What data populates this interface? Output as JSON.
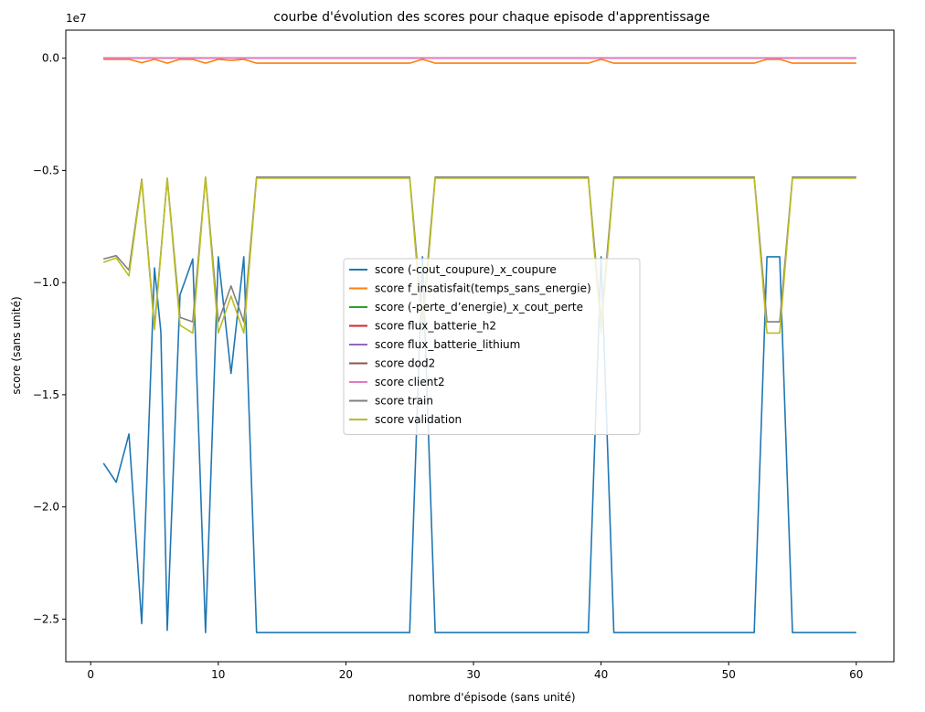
{
  "chart_data": {
    "type": "line",
    "title": "courbe d'évolution des scores pour chaque episode d'apprentissage",
    "xlabel": "nombre d'épisode (sans unité)",
    "ylabel": "score (sans unité)",
    "y_scale_label": "1e7",
    "xlim": [
      -1.95,
      62.95
    ],
    "ylim": [
      -26900000,
      1250000
    ],
    "xticks": [
      0,
      10,
      20,
      30,
      40,
      50,
      60
    ],
    "yticks": [
      0.0,
      -0.5,
      -1.0,
      -1.5,
      -2.0,
      -2.5
    ],
    "ytick_labels": [
      "0.0",
      "−0.5",
      "−1.0",
      "−1.5",
      "−2.0",
      "−2.5"
    ],
    "ytick_multiplier": 10000000,
    "grid": false,
    "legend_position": "center",
    "series": [
      {
        "name": "score (-cout_coupure)_x_coupure",
        "color": "#1f77b4",
        "points": [
          [
            1,
            -18050000
          ],
          [
            2,
            -18900000
          ],
          [
            3,
            -16750000
          ],
          [
            4,
            -25200000
          ],
          [
            5,
            -9350000
          ],
          [
            5.5,
            -12200000
          ],
          [
            6,
            -25500000
          ],
          [
            7,
            -10550000
          ],
          [
            8,
            -8950000
          ],
          [
            9,
            -25600000
          ],
          [
            10,
            -8850000
          ],
          [
            11,
            -14050000
          ],
          [
            12,
            -8850000
          ],
          [
            13,
            -25600000
          ],
          [
            25,
            -25600000
          ],
          [
            26,
            -8850000
          ],
          [
            27,
            -25600000
          ],
          [
            39,
            -25600000
          ],
          [
            40,
            -8850000
          ],
          [
            41,
            -25600000
          ],
          [
            52,
            -25600000
          ],
          [
            53,
            -8850000
          ],
          [
            54,
            -8850000
          ],
          [
            55,
            -25600000
          ],
          [
            60,
            -25600000
          ]
        ]
      },
      {
        "name": "score f_insatisfait(temps_sans_energie)",
        "color": "#ff7f0e",
        "points": [
          [
            1,
            -50000
          ],
          [
            2,
            -50000
          ],
          [
            3,
            -50000
          ],
          [
            4,
            -200000
          ],
          [
            5,
            -50000
          ],
          [
            6,
            -220000
          ],
          [
            7,
            -50000
          ],
          [
            8,
            -50000
          ],
          [
            9,
            -220000
          ],
          [
            10,
            -50000
          ],
          [
            11,
            -100000
          ],
          [
            12,
            -50000
          ],
          [
            13,
            -220000
          ],
          [
            25,
            -220000
          ],
          [
            26,
            -50000
          ],
          [
            27,
            -220000
          ],
          [
            39,
            -220000
          ],
          [
            40,
            -50000
          ],
          [
            41,
            -220000
          ],
          [
            52,
            -220000
          ],
          [
            53,
            -50000
          ],
          [
            54,
            -50000
          ],
          [
            55,
            -220000
          ],
          [
            60,
            -220000
          ]
        ]
      },
      {
        "name": "score (-perte_d’energie)_x_cout_perte",
        "color": "#2ca02c",
        "points": [
          [
            1,
            0
          ],
          [
            60,
            0
          ]
        ]
      },
      {
        "name": "score flux_batterie_h2",
        "color": "#d62728",
        "points": [
          [
            1,
            0
          ],
          [
            60,
            0
          ]
        ]
      },
      {
        "name": "score flux_batterie_lithium",
        "color": "#9467bd",
        "points": [
          [
            1,
            0
          ],
          [
            60,
            0
          ]
        ]
      },
      {
        "name": "score dod2",
        "color": "#8c564b",
        "points": [
          [
            1,
            0
          ],
          [
            60,
            0
          ]
        ]
      },
      {
        "name": "score client2",
        "color": "#e377c2",
        "points": [
          [
            1,
            0
          ],
          [
            60,
            0
          ]
        ]
      },
      {
        "name": "score train",
        "color": "#7f7f7f",
        "points": [
          [
            1,
            -8950000
          ],
          [
            2,
            -8800000
          ],
          [
            3,
            -9450000
          ],
          [
            4,
            -5400000
          ],
          [
            5,
            -11950000
          ],
          [
            6,
            -5350000
          ],
          [
            7,
            -11550000
          ],
          [
            8,
            -11750000
          ],
          [
            9,
            -5300000
          ],
          [
            10,
            -11750000
          ],
          [
            11,
            -10150000
          ],
          [
            12,
            -11750000
          ],
          [
            13,
            -5300000
          ],
          [
            25,
            -5300000
          ],
          [
            26,
            -11750000
          ],
          [
            27,
            -5300000
          ],
          [
            39,
            -5300000
          ],
          [
            40,
            -11750000
          ],
          [
            41,
            -5300000
          ],
          [
            52,
            -5300000
          ],
          [
            53,
            -11750000
          ],
          [
            54,
            -11750000
          ],
          [
            55,
            -5300000
          ],
          [
            60,
            -5300000
          ]
        ]
      },
      {
        "name": "score validation",
        "color": "#bcbd22",
        "points": [
          [
            1,
            -9100000
          ],
          [
            2,
            -8900000
          ],
          [
            3,
            -9700000
          ],
          [
            4,
            -5450000
          ],
          [
            5,
            -12100000
          ],
          [
            6,
            -5350000
          ],
          [
            7,
            -11900000
          ],
          [
            8,
            -12250000
          ],
          [
            9,
            -5300000
          ],
          [
            10,
            -12250000
          ],
          [
            11,
            -10600000
          ],
          [
            12,
            -12250000
          ],
          [
            13,
            -5350000
          ],
          [
            25,
            -5350000
          ],
          [
            26,
            -12250000
          ],
          [
            27,
            -5350000
          ],
          [
            39,
            -5350000
          ],
          [
            40,
            -12250000
          ],
          [
            41,
            -5350000
          ],
          [
            52,
            -5350000
          ],
          [
            53,
            -12250000
          ],
          [
            54,
            -12250000
          ],
          [
            55,
            -5350000
          ],
          [
            60,
            -5350000
          ]
        ]
      }
    ]
  }
}
